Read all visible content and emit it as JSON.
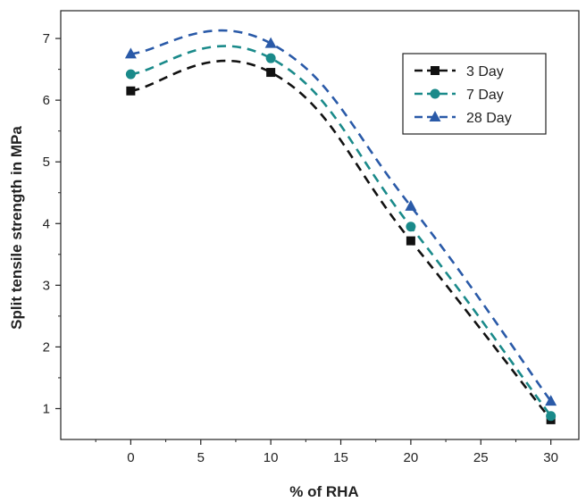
{
  "chart_data": {
    "type": "line",
    "xlabel": "% of RHA",
    "ylabel": "Split tensile strength in MPa",
    "x": [
      0,
      10,
      20,
      30
    ],
    "xlim": [
      -5,
      32
    ],
    "ylim": [
      0.5,
      7.45
    ],
    "xticks": [
      "0",
      "5",
      "10",
      "15",
      "20",
      "25",
      "30"
    ],
    "yticks": [
      "1",
      "2",
      "3",
      "4",
      "5",
      "6",
      "7"
    ],
    "grid": false,
    "legend_position": "top-right",
    "line_style": "dashed smooth curve",
    "series": [
      {
        "name": "3 Day",
        "values": [
          6.15,
          6.45,
          3.72,
          0.82
        ],
        "color": "#111111",
        "marker": "square"
      },
      {
        "name": "7 Day",
        "values": [
          6.42,
          6.68,
          3.95,
          0.88
        ],
        "color": "#1a8a8a",
        "marker": "circle"
      },
      {
        "name": "28 Day",
        "values": [
          6.75,
          6.92,
          4.28,
          1.12
        ],
        "color": "#2a5aa8",
        "marker": "triangle"
      }
    ]
  }
}
